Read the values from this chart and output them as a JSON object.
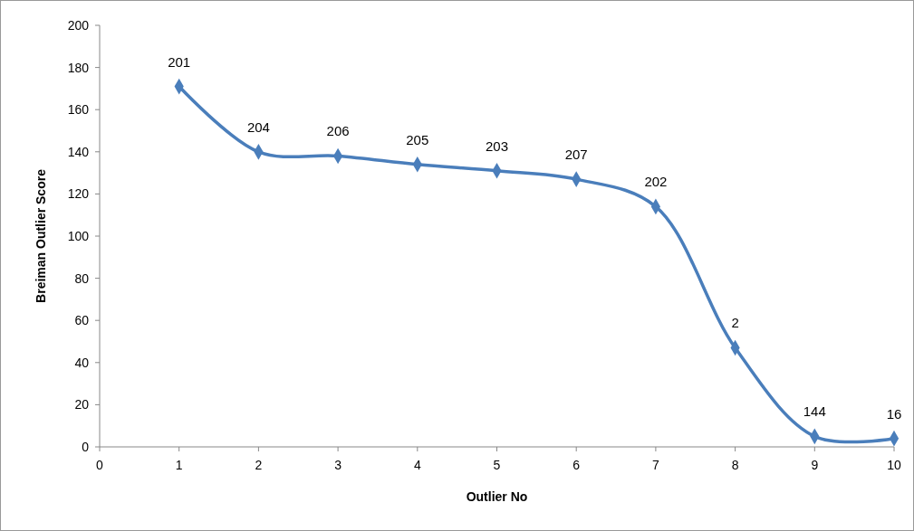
{
  "chart_data": {
    "type": "line",
    "xlabel": "Outlier No",
    "ylabel": "Breiman Outlier Score",
    "x": [
      1,
      2,
      3,
      4,
      5,
      6,
      7,
      8,
      9,
      10
    ],
    "series": [
      {
        "color": "#4a7ebb",
        "values": [
          171,
          140,
          138,
          134,
          131,
          127,
          114,
          47,
          5,
          4
        ]
      }
    ],
    "annotations": [
      {
        "text": "201",
        "x": 1,
        "y": 171
      },
      {
        "text": "204",
        "x": 2,
        "y": 140
      },
      {
        "text": "206",
        "x": 3,
        "y": 138
      },
      {
        "text": "205",
        "x": 4,
        "y": 134
      },
      {
        "text": "203",
        "x": 5,
        "y": 131
      },
      {
        "text": "207",
        "x": 6,
        "y": 127
      },
      {
        "text": "202",
        "x": 7,
        "y": 114
      },
      {
        "text": "2",
        "x": 8,
        "y": 47
      },
      {
        "text": "144",
        "x": 9,
        "y": 5
      },
      {
        "text": "16",
        "x": 10,
        "y": 4
      }
    ],
    "xlim": [
      0,
      10
    ],
    "xticks": [
      0,
      1,
      2,
      3,
      4,
      5,
      6,
      7,
      8,
      9,
      10
    ],
    "ylim": [
      0,
      200
    ],
    "yticks": [
      0,
      20,
      40,
      60,
      80,
      100,
      120,
      140,
      160,
      180,
      200
    ],
    "grid": false,
    "marker": "diamond",
    "line_style": "solid"
  }
}
